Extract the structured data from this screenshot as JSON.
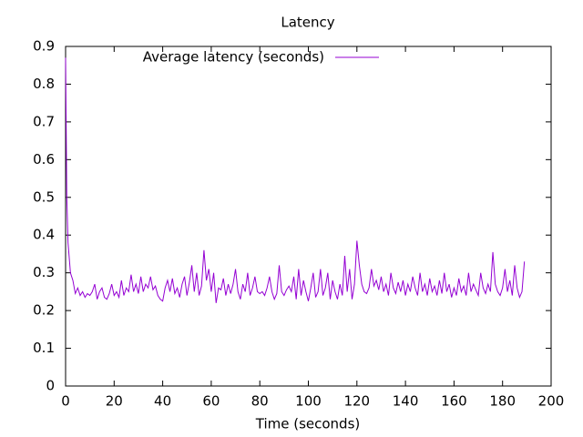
{
  "chart_data": {
    "type": "line",
    "title": "Latency",
    "xlabel": "Time (seconds)",
    "xlim": [
      0,
      200
    ],
    "xticks": [
      0,
      20,
      40,
      60,
      80,
      100,
      120,
      140,
      160,
      180,
      200
    ],
    "ylim": [
      0,
      0.9
    ],
    "yticks": [
      0,
      0.1,
      0.2,
      0.3,
      0.4,
      0.5,
      0.6,
      0.7,
      0.8,
      0.9
    ],
    "legend": "top",
    "x": [
      0,
      0.5,
      1,
      2,
      3,
      4,
      5,
      6,
      7,
      8,
      9,
      10,
      11,
      12,
      13,
      14,
      15,
      16,
      17,
      18,
      19,
      20,
      21,
      22,
      23,
      24,
      25,
      26,
      27,
      28,
      29,
      30,
      31,
      32,
      33,
      34,
      35,
      36,
      37,
      38,
      39,
      40,
      41,
      42,
      43,
      44,
      45,
      46,
      47,
      48,
      49,
      50,
      51,
      52,
      53,
      54,
      55,
      56,
      57,
      58,
      59,
      60,
      61,
      62,
      63,
      64,
      65,
      66,
      67,
      68,
      69,
      70,
      71,
      72,
      73,
      74,
      75,
      76,
      77,
      78,
      79,
      80,
      81,
      82,
      83,
      84,
      85,
      86,
      87,
      88,
      89,
      90,
      91,
      92,
      93,
      94,
      95,
      96,
      97,
      98,
      99,
      100,
      101,
      102,
      103,
      104,
      105,
      106,
      107,
      108,
      109,
      110,
      111,
      112,
      113,
      114,
      115,
      116,
      117,
      118,
      119,
      120,
      121,
      122,
      123,
      124,
      125,
      126,
      127,
      128,
      129,
      130,
      131,
      132,
      133,
      134,
      135,
      136,
      137,
      138,
      139,
      140,
      141,
      142,
      143,
      144,
      145,
      146,
      147,
      148,
      149,
      150,
      151,
      152,
      153,
      154,
      155,
      156,
      157,
      158,
      159,
      160,
      161,
      162,
      163,
      164,
      165,
      166,
      167,
      168,
      169,
      170,
      171,
      172,
      173,
      174,
      175,
      176,
      177,
      178,
      179,
      180,
      181,
      182,
      183,
      184,
      185,
      186,
      187,
      188,
      189
    ],
    "series": [
      {
        "name": "Average latency (seconds)",
        "color": "#9400d3",
        "values": [
          0.87,
          0.5,
          0.38,
          0.3,
          0.28,
          0.245,
          0.26,
          0.24,
          0.25,
          0.235,
          0.245,
          0.24,
          0.25,
          0.27,
          0.23,
          0.25,
          0.26,
          0.235,
          0.23,
          0.245,
          0.27,
          0.24,
          0.25,
          0.235,
          0.28,
          0.24,
          0.26,
          0.25,
          0.295,
          0.25,
          0.27,
          0.245,
          0.29,
          0.25,
          0.27,
          0.26,
          0.29,
          0.255,
          0.265,
          0.24,
          0.23,
          0.225,
          0.26,
          0.28,
          0.25,
          0.285,
          0.245,
          0.26,
          0.235,
          0.27,
          0.29,
          0.24,
          0.275,
          0.32,
          0.25,
          0.3,
          0.24,
          0.265,
          0.36,
          0.28,
          0.31,
          0.25,
          0.3,
          0.22,
          0.26,
          0.255,
          0.285,
          0.24,
          0.27,
          0.245,
          0.27,
          0.31,
          0.25,
          0.23,
          0.27,
          0.25,
          0.3,
          0.24,
          0.26,
          0.29,
          0.25,
          0.245,
          0.25,
          0.24,
          0.26,
          0.29,
          0.25,
          0.23,
          0.245,
          0.32,
          0.25,
          0.24,
          0.255,
          0.265,
          0.25,
          0.29,
          0.23,
          0.31,
          0.24,
          0.28,
          0.25,
          0.225,
          0.26,
          0.3,
          0.235,
          0.25,
          0.31,
          0.24,
          0.26,
          0.3,
          0.23,
          0.28,
          0.25,
          0.23,
          0.27,
          0.24,
          0.345,
          0.25,
          0.31,
          0.23,
          0.27,
          0.385,
          0.32,
          0.27,
          0.25,
          0.245,
          0.26,
          0.31,
          0.265,
          0.28,
          0.255,
          0.29,
          0.25,
          0.27,
          0.24,
          0.3,
          0.26,
          0.245,
          0.275,
          0.25,
          0.28,
          0.24,
          0.27,
          0.25,
          0.29,
          0.26,
          0.24,
          0.3,
          0.25,
          0.27,
          0.24,
          0.285,
          0.25,
          0.265,
          0.24,
          0.28,
          0.245,
          0.3,
          0.25,
          0.27,
          0.235,
          0.26,
          0.24,
          0.285,
          0.25,
          0.265,
          0.24,
          0.3,
          0.25,
          0.27,
          0.255,
          0.24,
          0.3,
          0.26,
          0.245,
          0.27,
          0.25,
          0.355,
          0.27,
          0.25,
          0.24,
          0.26,
          0.31,
          0.25,
          0.28,
          0.24,
          0.32,
          0.26,
          0.235,
          0.25,
          0.33
        ]
      }
    ]
  }
}
